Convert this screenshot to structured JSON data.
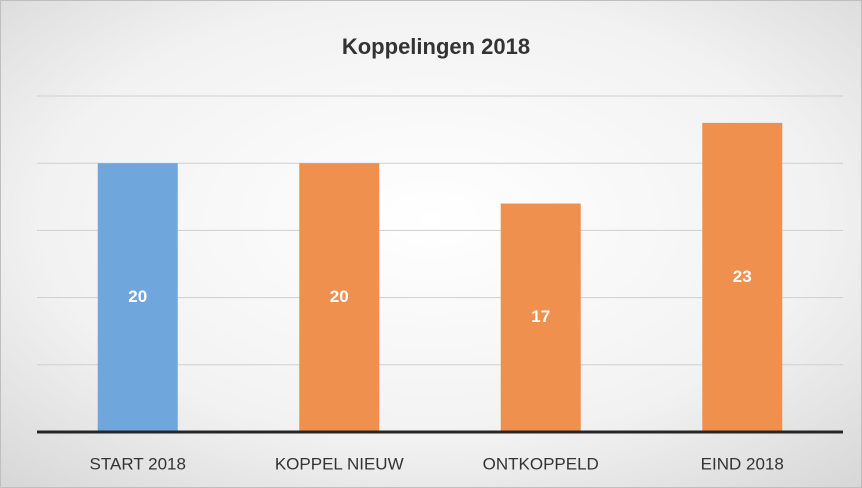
{
  "chart_data": {
    "type": "bar",
    "title": "Koppelingen 2018",
    "categories": [
      "START 2018",
      "KOPPEL NIEUW",
      "ONTKOPPELD",
      "EIND 2018"
    ],
    "values": [
      20,
      20,
      17,
      23
    ],
    "colors": [
      "#6fa6dc",
      "#f0904f",
      "#f0904f",
      "#f0904f"
    ],
    "ylim": [
      0,
      25
    ],
    "yticks": [
      0,
      5,
      10,
      15,
      20,
      25
    ],
    "grid": true
  }
}
